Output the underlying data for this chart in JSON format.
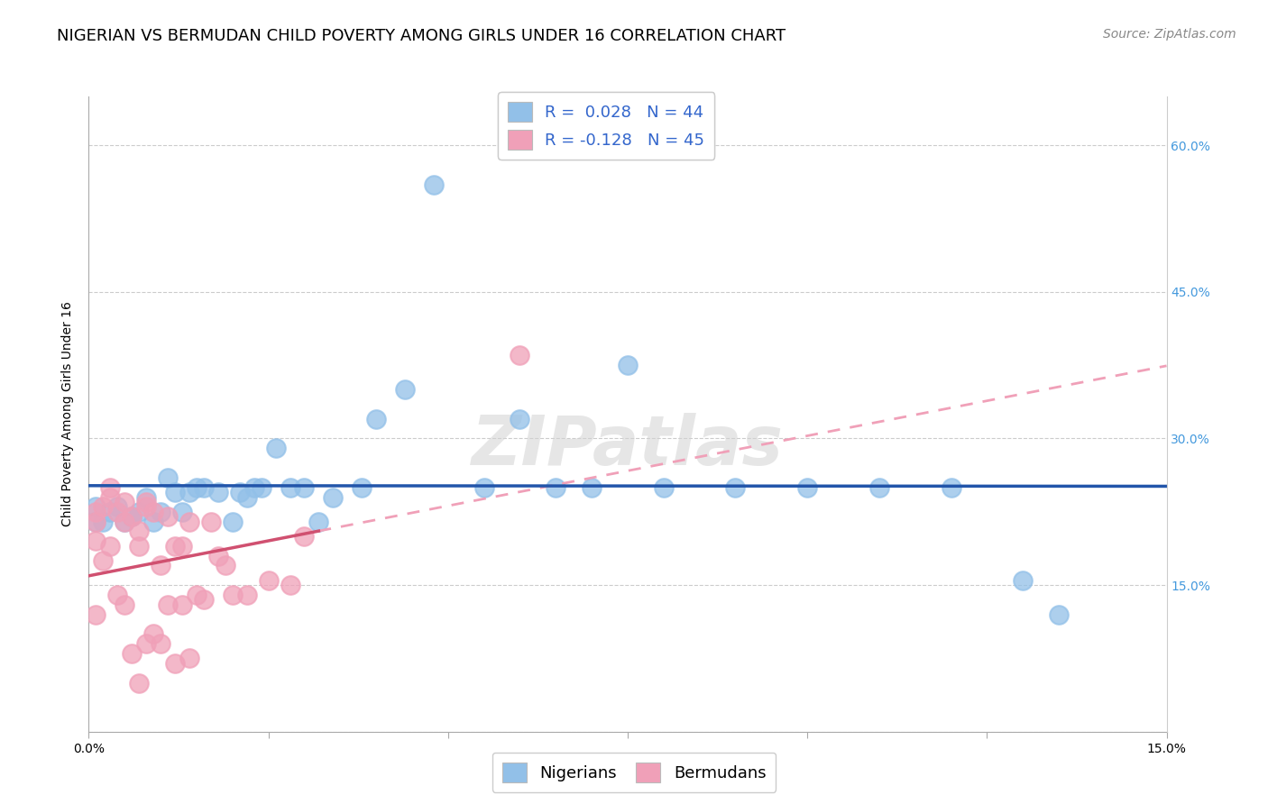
{
  "title": "NIGERIAN VS BERMUDAN CHILD POVERTY AMONG GIRLS UNDER 16 CORRELATION CHART",
  "source": "Source: ZipAtlas.com",
  "ylabel": "Child Poverty Among Girls Under 16",
  "watermark": "ZIPatlas",
  "xlim": [
    0.0,
    0.15
  ],
  "ylim": [
    0.0,
    0.65
  ],
  "xticks": [
    0.0,
    0.025,
    0.05,
    0.075,
    0.1,
    0.125,
    0.15
  ],
  "yticks": [
    0.0,
    0.15,
    0.3,
    0.45,
    0.6
  ],
  "xtick_labels": [
    "0.0%",
    "",
    "",
    "",
    "",
    "",
    "15.0%"
  ],
  "ytick_labels_right": [
    "",
    "15.0%",
    "30.0%",
    "45.0%",
    "60.0%"
  ],
  "nigerian_color": "#92C0E8",
  "bermudan_color": "#F0A0B8",
  "nigerian_line_color": "#2255AA",
  "bermudan_solid_color": "#D05070",
  "bermudan_dashed_color": "#F0A0B8",
  "legend_label_1": "R =  0.028   N = 44",
  "legend_label_2": "R = -0.128   N = 45",
  "nigerian_x": [
    0.001,
    0.001,
    0.002,
    0.003,
    0.004,
    0.005,
    0.006,
    0.007,
    0.008,
    0.009,
    0.01,
    0.011,
    0.012,
    0.013,
    0.014,
    0.015,
    0.016,
    0.018,
    0.02,
    0.021,
    0.022,
    0.023,
    0.024,
    0.026,
    0.028,
    0.03,
    0.032,
    0.034,
    0.038,
    0.04,
    0.044,
    0.048,
    0.055,
    0.06,
    0.065,
    0.07,
    0.075,
    0.08,
    0.09,
    0.1,
    0.11,
    0.12,
    0.13,
    0.135
  ],
  "nigerian_y": [
    0.23,
    0.215,
    0.215,
    0.225,
    0.23,
    0.215,
    0.22,
    0.225,
    0.24,
    0.215,
    0.225,
    0.26,
    0.245,
    0.225,
    0.245,
    0.25,
    0.25,
    0.245,
    0.215,
    0.245,
    0.24,
    0.25,
    0.25,
    0.29,
    0.25,
    0.25,
    0.215,
    0.24,
    0.25,
    0.32,
    0.35,
    0.56,
    0.25,
    0.32,
    0.25,
    0.25,
    0.375,
    0.25,
    0.25,
    0.25,
    0.25,
    0.25,
    0.155,
    0.12
  ],
  "bermudan_x": [
    0.001,
    0.001,
    0.001,
    0.001,
    0.002,
    0.002,
    0.003,
    0.003,
    0.003,
    0.004,
    0.004,
    0.005,
    0.005,
    0.005,
    0.006,
    0.006,
    0.007,
    0.007,
    0.007,
    0.008,
    0.008,
    0.008,
    0.009,
    0.009,
    0.01,
    0.01,
    0.011,
    0.011,
    0.012,
    0.012,
    0.013,
    0.013,
    0.014,
    0.014,
    0.015,
    0.016,
    0.017,
    0.018,
    0.019,
    0.02,
    0.022,
    0.025,
    0.028,
    0.03,
    0.06
  ],
  "bermudan_y": [
    0.225,
    0.215,
    0.195,
    0.12,
    0.23,
    0.175,
    0.25,
    0.24,
    0.19,
    0.225,
    0.14,
    0.235,
    0.215,
    0.13,
    0.22,
    0.08,
    0.205,
    0.19,
    0.05,
    0.235,
    0.23,
    0.09,
    0.225,
    0.1,
    0.17,
    0.09,
    0.22,
    0.13,
    0.19,
    0.07,
    0.19,
    0.13,
    0.215,
    0.075,
    0.14,
    0.135,
    0.215,
    0.18,
    0.17,
    0.14,
    0.14,
    0.155,
    0.15,
    0.2,
    0.385
  ],
  "background_color": "#FFFFFF",
  "grid_color": "#CCCCCC",
  "title_fontsize": 13,
  "axis_label_fontsize": 10,
  "tick_fontsize": 10,
  "legend_fontsize": 13,
  "source_fontsize": 10
}
